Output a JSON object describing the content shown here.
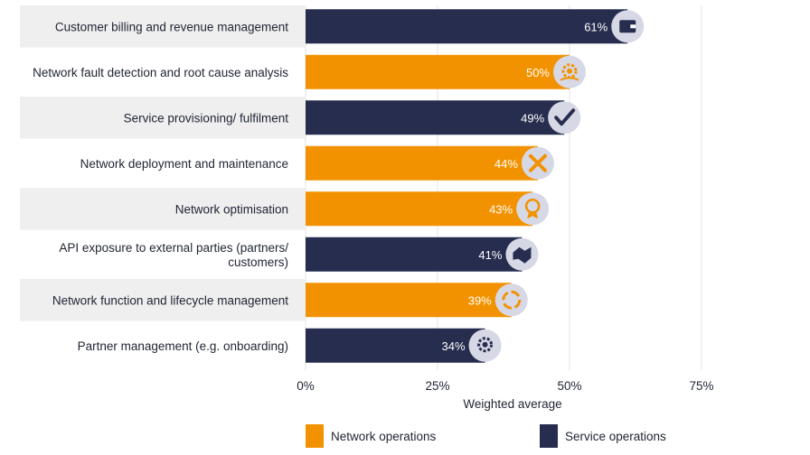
{
  "chart_data": {
    "type": "bar",
    "orientation": "horizontal",
    "xlabel": "Weighted average",
    "xlim": [
      0,
      75
    ],
    "xticks": [
      "0%",
      "25%",
      "50%",
      "75%"
    ],
    "grid": true,
    "legend_position": "bottom",
    "categories": [
      "Customer billing and revenue management",
      "Network fault detection and root cause analysis",
      "Service provisioning/ fulfilment",
      "Network deployment and maintenance",
      "Network optimisation",
      "API exposure to external parties (partners/ customers)",
      "Network function and lifecycle management",
      "Partner management (e.g. onboarding)"
    ],
    "category_lines": [
      [
        "Customer billing and revenue management"
      ],
      [
        "Network fault detection and root cause analysis"
      ],
      [
        "Service provisioning/ fulfilment"
      ],
      [
        "Network deployment and maintenance"
      ],
      [
        "Network optimisation"
      ],
      [
        "API exposure to external parties (partners/",
        "customers)"
      ],
      [
        "Network function and lifecycle management"
      ],
      [
        "Partner management (e.g. onboarding)"
      ]
    ],
    "values": [
      61,
      50,
      49,
      44,
      43,
      41,
      39,
      34
    ],
    "value_labels": [
      "61%",
      "50%",
      "49%",
      "44%",
      "43%",
      "41%",
      "39%",
      "34%"
    ],
    "bar_series": [
      "Service operations",
      "Network operations",
      "Service operations",
      "Network operations",
      "Network operations",
      "Service operations",
      "Network operations",
      "Service operations"
    ],
    "icons": [
      "wallet-icon",
      "gear-hand-icon",
      "checkmark-icon",
      "wrench-screwdriver-icon",
      "award-ribbon-icon",
      "handshake-icon",
      "cycle-arrows-icon",
      "code-gear-icon"
    ],
    "series": [
      {
        "name": "Network operations",
        "color": "#f39200"
      },
      {
        "name": "Service operations",
        "color": "#272d4e"
      }
    ],
    "colors": {
      "network": "#f39200",
      "service": "#272d4e",
      "icon_bg": "#d6d8e6",
      "row_band": "#efefef",
      "grid": "#e3e3e3"
    }
  },
  "legend": {
    "network_label": "Network operations",
    "service_label": "Service operations"
  }
}
